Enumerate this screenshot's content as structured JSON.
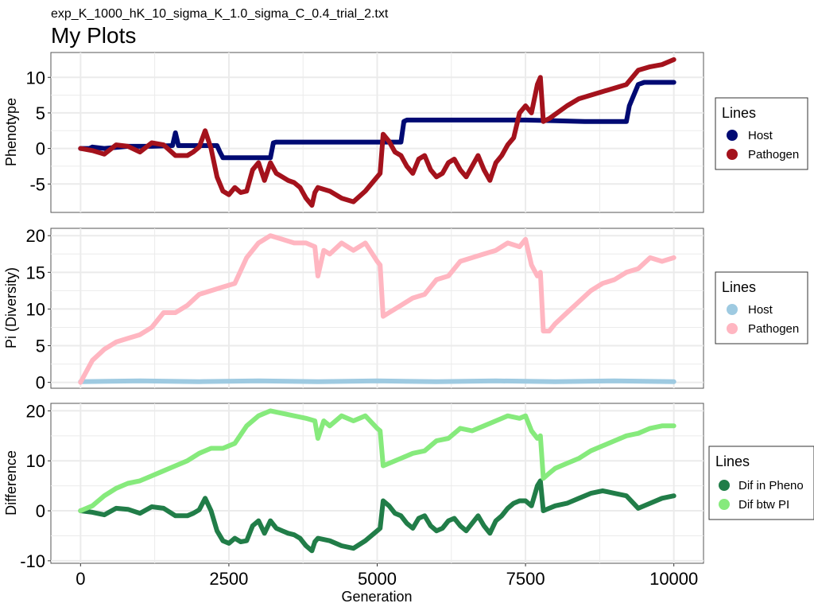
{
  "subtitle": "exp_K_1000_hK_10_sigma_K_1.0_sigma_C_0.4_trial_2.txt",
  "title": "My Plots",
  "chart_data": [
    {
      "type": "line",
      "ylabel": "Phenotype",
      "xlim": [
        0,
        10000
      ],
      "ylim": [
        -9,
        13.5
      ],
      "yticks": [
        -5,
        0,
        5,
        10
      ],
      "ytick_labels": [
        "-5",
        "0",
        "5",
        "10"
      ],
      "grid": true,
      "legend": {
        "title": "Lines",
        "placement": "right"
      },
      "series": [
        {
          "name": "Host",
          "color": "#000a73",
          "x": [
            0,
            150,
            200,
            400,
            800,
            1200,
            1550,
            1600,
            1650,
            2300,
            2350,
            2400,
            2500,
            3000,
            3200,
            3250,
            3300,
            3500,
            4000,
            4500,
            5000,
            5400,
            5450,
            5500,
            6000,
            6500,
            7000,
            7200,
            7500,
            8000,
            8500,
            9000,
            9200,
            9250,
            9300,
            9400,
            9500,
            9750,
            10000
          ],
          "y": [
            0,
            0,
            0.2,
            0,
            0.3,
            0.3,
            0.4,
            2.2,
            0.4,
            0.4,
            -0.5,
            -1.3,
            -1.3,
            -1.3,
            -1.3,
            0.8,
            0.9,
            0.9,
            0.9,
            0.9,
            0.9,
            0.9,
            3.8,
            4,
            4,
            4,
            4,
            4,
            4,
            3.9,
            3.8,
            3.8,
            3.8,
            6,
            7,
            9,
            9.3,
            9.3,
            9.3
          ]
        },
        {
          "name": "Pathogen",
          "color": "#a4121c",
          "x": [
            0,
            200,
            400,
            600,
            800,
            1000,
            1200,
            1400,
            1600,
            1800,
            1900,
            2000,
            2100,
            2200,
            2300,
            2400,
            2500,
            2600,
            2700,
            2800,
            2900,
            3000,
            3100,
            3200,
            3300,
            3400,
            3500,
            3600,
            3700,
            3800,
            3900,
            3950,
            4000,
            4200,
            4400,
            4600,
            4800,
            5000,
            5050,
            5100,
            5200,
            5300,
            5400,
            5500,
            5600,
            5700,
            5800,
            5900,
            6000,
            6100,
            6200,
            6300,
            6400,
            6500,
            6600,
            6700,
            6800,
            6900,
            7000,
            7100,
            7200,
            7300,
            7400,
            7500,
            7600,
            7700,
            7750,
            7800,
            7900,
            8000,
            8200,
            8400,
            8600,
            8800,
            9000,
            9200,
            9400,
            9600,
            9800,
            10000
          ],
          "y": [
            0,
            -0.3,
            -0.8,
            0.5,
            0.3,
            -0.5,
            0.8,
            0.5,
            -1,
            -1,
            -0.5,
            0.2,
            2.5,
            0,
            -4,
            -6,
            -6.5,
            -5.5,
            -6.2,
            -6,
            -3,
            -2,
            -4.5,
            -2,
            -3.5,
            -4,
            -4.5,
            -4.8,
            -5.5,
            -7,
            -8,
            -6.2,
            -5.5,
            -6,
            -7,
            -7.5,
            -6,
            -4,
            -3.5,
            2,
            1,
            -0.5,
            -1,
            -2.5,
            -3.5,
            -1.5,
            -1,
            -3,
            -4,
            -3.5,
            -2,
            -1.5,
            -3,
            -4,
            -2.5,
            -1,
            -3,
            -4.5,
            -2,
            -1,
            0.5,
            1.5,
            5,
            6,
            5,
            9,
            10,
            3.8,
            4.2,
            4.8,
            6,
            7,
            7.5,
            8,
            8.5,
            9,
            11,
            11.5,
            11.8,
            12.5
          ]
        }
      ]
    },
    {
      "type": "line",
      "ylabel": "Pi (Diversity)",
      "xlim": [
        0,
        10000
      ],
      "ylim": [
        -0.8,
        21
      ],
      "yticks": [
        0,
        5,
        10,
        15,
        20
      ],
      "ytick_labels": [
        "0",
        "5",
        "10",
        "15",
        "20"
      ],
      "grid": true,
      "legend": {
        "title": "Lines",
        "placement": "right"
      },
      "series": [
        {
          "name": "Host",
          "color": "#9ecae1",
          "x": [
            0,
            1000,
            2000,
            3000,
            4000,
            5000,
            6000,
            7000,
            8000,
            9000,
            10000
          ],
          "y": [
            0.1,
            0.2,
            0.1,
            0.2,
            0.1,
            0.2,
            0.1,
            0.2,
            0.1,
            0.2,
            0.1
          ]
        },
        {
          "name": "Pathogen",
          "color": "#ffb6c1",
          "x": [
            0,
            200,
            400,
            600,
            800,
            1000,
            1200,
            1400,
            1600,
            1800,
            2000,
            2200,
            2400,
            2600,
            2800,
            3000,
            3200,
            3400,
            3600,
            3800,
            3950,
            4000,
            4100,
            4200,
            4400,
            4600,
            4800,
            5000,
            5050,
            5100,
            5200,
            5400,
            5600,
            5800,
            6000,
            6200,
            6400,
            6600,
            6800,
            7000,
            7200,
            7400,
            7500,
            7600,
            7700,
            7750,
            7800,
            7900,
            8000,
            8200,
            8400,
            8600,
            8800,
            9000,
            9200,
            9400,
            9600,
            9800,
            10000
          ],
          "y": [
            0,
            3,
            4.5,
            5.5,
            6,
            6.5,
            7.5,
            9.5,
            9.5,
            10.5,
            12,
            12.5,
            13,
            13.5,
            17,
            19,
            20,
            19.5,
            19,
            19,
            18.5,
            14.5,
            18,
            17.5,
            19,
            18,
            19,
            16.5,
            16,
            9,
            9.5,
            10.5,
            11.5,
            12,
            14,
            14.5,
            16.5,
            17,
            17.5,
            18,
            19,
            18.5,
            19.5,
            16,
            14.5,
            15,
            7,
            7,
            8,
            9.5,
            11,
            12.5,
            13.5,
            14,
            15,
            15.5,
            17,
            16.5,
            17
          ]
        }
      ]
    },
    {
      "type": "line",
      "xlabel": "Generation",
      "ylabel": "Difference",
      "xlim": [
        -500,
        10500
      ],
      "ylim": [
        -10.5,
        21.5
      ],
      "xticks": [
        0,
        2500,
        5000,
        7500,
        10000
      ],
      "xtick_labels": [
        "0",
        "2500",
        "5000",
        "7500",
        "10000"
      ],
      "yticks": [
        -10,
        0,
        10,
        20
      ],
      "ytick_labels": [
        "-10",
        "0",
        "10",
        "20"
      ],
      "grid": true,
      "legend": {
        "title": "Lines",
        "placement": "right"
      },
      "series": [
        {
          "name": "Dif in Pheno",
          "color": "#217d48",
          "x": [
            0,
            200,
            400,
            600,
            800,
            1000,
            1200,
            1400,
            1600,
            1800,
            1900,
            2000,
            2100,
            2200,
            2300,
            2400,
            2500,
            2600,
            2700,
            2800,
            2900,
            3000,
            3100,
            3200,
            3300,
            3400,
            3500,
            3600,
            3700,
            3800,
            3900,
            3950,
            4000,
            4200,
            4400,
            4600,
            4800,
            5000,
            5050,
            5100,
            5200,
            5300,
            5400,
            5500,
            5600,
            5700,
            5800,
            5900,
            6000,
            6100,
            6200,
            6300,
            6400,
            6500,
            6600,
            6700,
            6800,
            6900,
            7000,
            7100,
            7200,
            7300,
            7400,
            7500,
            7600,
            7700,
            7750,
            7800,
            7900,
            8000,
            8200,
            8400,
            8600,
            8800,
            9000,
            9200,
            9400,
            9600,
            9800,
            10000
          ],
          "y": [
            0,
            -0.3,
            -0.8,
            0.5,
            0.3,
            -0.5,
            0.8,
            0.5,
            -1,
            -1,
            -0.5,
            0.2,
            2.5,
            0,
            -4,
            -6,
            -6.5,
            -5.5,
            -6.2,
            -6,
            -3,
            -2,
            -4.5,
            -2,
            -3.5,
            -4,
            -4.5,
            -4.8,
            -5.5,
            -7,
            -8,
            -6.2,
            -5.5,
            -6,
            -7,
            -7.5,
            -6,
            -4,
            -3.5,
            2,
            1,
            -0.5,
            -1,
            -2.5,
            -3.5,
            -1.5,
            -1,
            -3,
            -4,
            -3.5,
            -2,
            -1.5,
            -3,
            -4,
            -2.5,
            -1,
            -3,
            -4.5,
            -2,
            -1,
            0.5,
            1.5,
            2,
            2,
            1,
            5,
            6,
            0,
            0.5,
            1,
            1.5,
            2.5,
            3.5,
            4,
            3.5,
            3,
            0.5,
            1.5,
            2.5,
            3
          ]
        },
        {
          "name": "Dif btw PI",
          "color": "#86ea7c",
          "x": [
            0,
            200,
            400,
            600,
            800,
            1000,
            1200,
            1400,
            1600,
            1800,
            2000,
            2200,
            2400,
            2600,
            2800,
            3000,
            3200,
            3400,
            3600,
            3800,
            3950,
            4000,
            4100,
            4200,
            4400,
            4600,
            4800,
            5000,
            5050,
            5100,
            5200,
            5400,
            5600,
            5800,
            6000,
            6200,
            6400,
            6600,
            6800,
            7000,
            7200,
            7400,
            7500,
            7600,
            7700,
            7750,
            7800,
            7900,
            8000,
            8200,
            8400,
            8600,
            8800,
            9000,
            9200,
            9400,
            9600,
            9800,
            10000
          ],
          "y": [
            0,
            1,
            3,
            4.5,
            5.5,
            6,
            7,
            8,
            9,
            10,
            11.5,
            12.5,
            12.5,
            13.5,
            17,
            19,
            20,
            19.5,
            19,
            18.5,
            18,
            14.5,
            18,
            17,
            19,
            18,
            19,
            16.5,
            16,
            9,
            9.5,
            10.5,
            11.5,
            12,
            14,
            14.5,
            16.5,
            16,
            17,
            18,
            19,
            18.5,
            19,
            16,
            14.5,
            15,
            6.5,
            7.5,
            8.5,
            9.5,
            10.5,
            12,
            13,
            14,
            15,
            15.5,
            16.5,
            17,
            17
          ]
        }
      ]
    }
  ]
}
